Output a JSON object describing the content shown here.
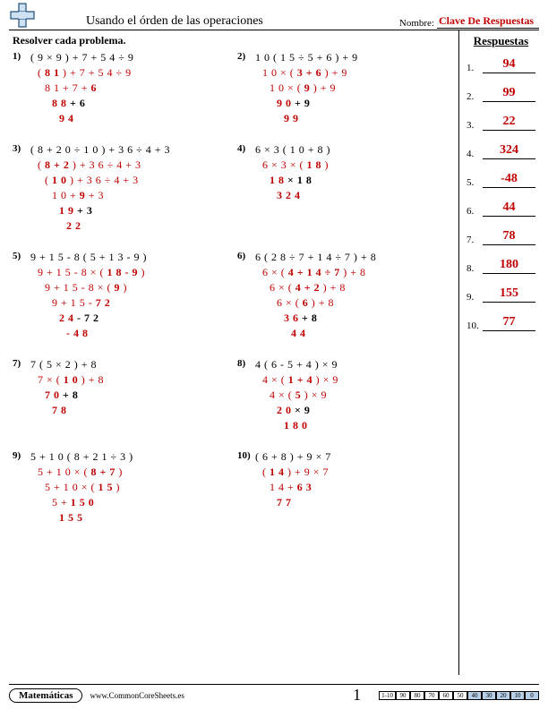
{
  "header": {
    "title": "Usando el órden de las operaciones",
    "name_label": "Nombre:",
    "name_value": "Clave De Respuestas"
  },
  "instruction": "Resolver cada problema.",
  "answers_title": "Respuestas",
  "problems": [
    {
      "num": "1)",
      "steps": [
        {
          "cls": "black",
          "indent": 0,
          "text": "( 9 × 9 ) + 7 + 5 4 ÷ 9"
        },
        {
          "cls": "red",
          "indent": 1,
          "html": "( <b>8 1</b> ) + 7 + 5 4 ÷ 9"
        },
        {
          "cls": "red",
          "indent": 2,
          "html": "8 1 + 7 + <b>6</b>"
        },
        {
          "cls": "red bold",
          "indent": 3,
          "html": "<b>8 8</b> <span class='black'>+ 6</span>"
        },
        {
          "cls": "red bold",
          "indent": 4,
          "text": "9 4"
        }
      ]
    },
    {
      "num": "2)",
      "steps": [
        {
          "cls": "black",
          "indent": 0,
          "text": "1 0 ( 1 5 ÷ 5 + 6 ) + 9"
        },
        {
          "cls": "red",
          "indent": 1,
          "html": "1 0 × ( <b>3 + 6</b> ) + 9"
        },
        {
          "cls": "red",
          "indent": 2,
          "html": "1 0 × ( <b>9</b> ) + 9"
        },
        {
          "cls": "red bold",
          "indent": 3,
          "html": "<b>9 0</b> <span class='black'>+ 9</span>"
        },
        {
          "cls": "red bold",
          "indent": 4,
          "text": "9 9"
        }
      ]
    },
    {
      "num": "3)",
      "steps": [
        {
          "cls": "black",
          "indent": 0,
          "text": "( 8 + 2 0 ÷ 1 0 ) + 3 6 ÷ 4 + 3"
        },
        {
          "cls": "red",
          "indent": 1,
          "html": "( <b>8 + 2</b> ) + 3 6 ÷ 4 + 3"
        },
        {
          "cls": "red",
          "indent": 2,
          "html": "( <b>1 0</b> ) + 3 6 ÷ 4 + 3"
        },
        {
          "cls": "red",
          "indent": 3,
          "html": "1 0 + <b>9</b> + 3"
        },
        {
          "cls": "red bold",
          "indent": 4,
          "html": "<b>1 9</b> <span class='black'>+ 3</span>"
        },
        {
          "cls": "red bold",
          "indent": 5,
          "text": "2 2"
        }
      ]
    },
    {
      "num": "4)",
      "steps": [
        {
          "cls": "black",
          "indent": 0,
          "text": "6 × 3 ( 1 0 + 8 )"
        },
        {
          "cls": "red",
          "indent": 1,
          "html": "6 × 3 × ( <b>1 8</b> )"
        },
        {
          "cls": "red bold",
          "indent": 2,
          "html": "<b>1 8</b> <span class='black'>× 1 8</span>"
        },
        {
          "cls": "red bold",
          "indent": 3,
          "text": "3 2 4"
        }
      ]
    },
    {
      "num": "5)",
      "steps": [
        {
          "cls": "black",
          "indent": 0,
          "text": "9 + 1 5 - 8 ( 5 + 1 3 - 9 )"
        },
        {
          "cls": "red",
          "indent": 1,
          "html": "9 + 1 5 - 8 × ( <b>1 8 - 9</b> )"
        },
        {
          "cls": "red",
          "indent": 2,
          "html": "9 + 1 5 - 8 × ( <b>9</b> )"
        },
        {
          "cls": "red",
          "indent": 3,
          "html": "9 + 1 5 - <b>7 2</b>"
        },
        {
          "cls": "red bold",
          "indent": 4,
          "html": "<b>2 4</b> <span class='black'>- 7 2</span>"
        },
        {
          "cls": "red bold",
          "indent": 5,
          "text": "- 4 8"
        }
      ]
    },
    {
      "num": "6)",
      "steps": [
        {
          "cls": "black",
          "indent": 0,
          "text": "6 ( 2 8 ÷ 7 + 1 4 ÷ 7 ) + 8"
        },
        {
          "cls": "red",
          "indent": 1,
          "html": "6 × ( <b>4 + 1 4 ÷ 7</b> ) + 8"
        },
        {
          "cls": "red",
          "indent": 2,
          "html": "6 × ( <b>4 + 2</b> ) + 8"
        },
        {
          "cls": "red",
          "indent": 3,
          "html": "6 × ( <b>6</b> ) + 8"
        },
        {
          "cls": "red bold",
          "indent": 4,
          "html": "<b>3 6</b> <span class='black'>+ 8</span>"
        },
        {
          "cls": "red bold",
          "indent": 5,
          "text": "4 4"
        }
      ]
    },
    {
      "num": "7)",
      "steps": [
        {
          "cls": "black",
          "indent": 0,
          "text": "7 ( 5 × 2 ) + 8"
        },
        {
          "cls": "red",
          "indent": 1,
          "html": "7 × ( <b>1 0</b> ) + 8"
        },
        {
          "cls": "red bold",
          "indent": 2,
          "html": "<b>7 0</b> <span class='black'>+ 8</span>"
        },
        {
          "cls": "red bold",
          "indent": 3,
          "text": "7 8"
        }
      ]
    },
    {
      "num": "8)",
      "steps": [
        {
          "cls": "black",
          "indent": 0,
          "text": "4 ( 6 - 5 + 4 ) × 9"
        },
        {
          "cls": "red",
          "indent": 1,
          "html": "4 × ( <b>1 + 4</b> ) × 9"
        },
        {
          "cls": "red",
          "indent": 2,
          "html": "4 × ( <b>5</b> ) × 9"
        },
        {
          "cls": "red bold",
          "indent": 3,
          "html": "<b>2 0</b> <span class='black'>× 9</span>"
        },
        {
          "cls": "red bold",
          "indent": 4,
          "text": "1 8 0"
        }
      ]
    },
    {
      "num": "9)",
      "steps": [
        {
          "cls": "black",
          "indent": 0,
          "text": "5 + 1 0 ( 8 + 2 1 ÷ 3 )"
        },
        {
          "cls": "red",
          "indent": 1,
          "html": "5 + 1 0 × ( <b>8 + 7</b> )"
        },
        {
          "cls": "red",
          "indent": 2,
          "html": "5 + 1 0 × ( <b>1 5</b> )"
        },
        {
          "cls": "red",
          "indent": 3,
          "html": "5 + <b>1 5 0</b>"
        },
        {
          "cls": "red bold",
          "indent": 4,
          "text": "1 5 5"
        }
      ]
    },
    {
      "num": "10)",
      "steps": [
        {
          "cls": "black",
          "indent": 0,
          "text": "( 6 + 8 ) + 9 × 7"
        },
        {
          "cls": "red",
          "indent": 1,
          "html": "( <b>1 4</b> ) + 9 × 7"
        },
        {
          "cls": "red",
          "indent": 2,
          "html": "1 4 + <b>6 3</b>"
        },
        {
          "cls": "red bold",
          "indent": 3,
          "text": "7 7"
        }
      ]
    }
  ],
  "answers": [
    {
      "n": "1.",
      "v": "94"
    },
    {
      "n": "2.",
      "v": "99"
    },
    {
      "n": "3.",
      "v": "22"
    },
    {
      "n": "4.",
      "v": "324"
    },
    {
      "n": "5.",
      "v": "-48"
    },
    {
      "n": "6.",
      "v": "44"
    },
    {
      "n": "7.",
      "v": "78"
    },
    {
      "n": "8.",
      "v": "180"
    },
    {
      "n": "9.",
      "v": "155"
    },
    {
      "n": "10.",
      "v": "77"
    }
  ],
  "footer": {
    "subject": "Matemáticas",
    "url": "www.CommonCoreSheets.es",
    "page": "1",
    "grid_label": "1-10",
    "grid_values": [
      "90",
      "80",
      "70",
      "60",
      "50",
      "40",
      "30",
      "20",
      "10",
      "0"
    ],
    "shaded_from": 5
  }
}
